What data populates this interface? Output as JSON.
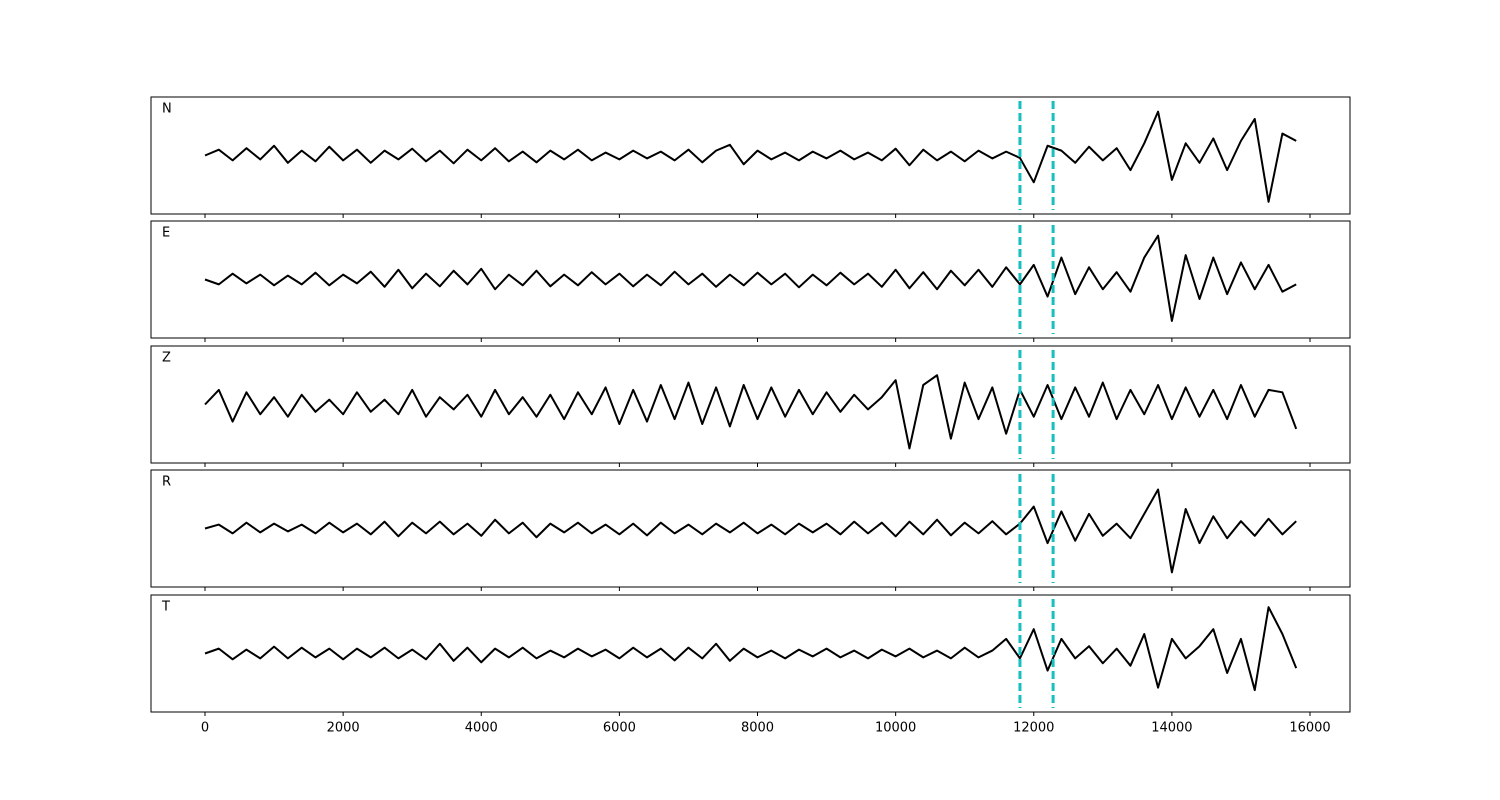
{
  "chart_data": {
    "type": "line",
    "layout": "stacked",
    "x": [
      0,
      200,
      400,
      600,
      800,
      1000,
      1200,
      1400,
      1600,
      1800,
      2000,
      2200,
      2400,
      2600,
      2800,
      3000,
      3200,
      3400,
      3600,
      3800,
      4000,
      4200,
      4400,
      4600,
      4800,
      5000,
      5200,
      5400,
      5600,
      5800,
      6000,
      6200,
      6400,
      6600,
      6800,
      7000,
      7200,
      7400,
      7600,
      7800,
      8000,
      8200,
      8400,
      8600,
      8800,
      9000,
      9200,
      9400,
      9600,
      9800,
      10000,
      10200,
      10400,
      10600,
      10800,
      11000,
      11200,
      11400,
      11600,
      11800,
      12000,
      12200,
      12400,
      12600,
      12800,
      13000,
      13200,
      13400,
      13600,
      13800,
      14000,
      14200,
      14400,
      14600,
      14800,
      15000,
      15200,
      15400,
      15600,
      15800
    ],
    "series": [
      {
        "name": "N",
        "color": "#000000",
        "values": [
          0,
          0.12,
          -0.1,
          0.15,
          -0.08,
          0.2,
          -0.15,
          0.1,
          -0.12,
          0.18,
          -0.1,
          0.12,
          -0.15,
          0.1,
          -0.08,
          0.14,
          -0.12,
          0.1,
          -0.16,
          0.12,
          -0.1,
          0.15,
          -0.12,
          0.08,
          -0.14,
          0.1,
          -0.08,
          0.12,
          -0.1,
          0.06,
          -0.08,
          0.1,
          -0.06,
          0.08,
          -0.1,
          0.12,
          -0.14,
          0.1,
          0.22,
          -0.18,
          0.1,
          -0.08,
          0.06,
          -0.1,
          0.08,
          -0.06,
          0.1,
          -0.08,
          0.06,
          -0.1,
          0.14,
          -0.2,
          0.12,
          -0.1,
          0.08,
          -0.12,
          0.1,
          -0.06,
          0.08,
          -0.05,
          -0.55,
          0.2,
          0.1,
          -0.15,
          0.18,
          -0.1,
          0.15,
          -0.3,
          0.25,
          0.9,
          -0.5,
          0.25,
          -0.15,
          0.35,
          -0.3,
          0.3,
          0.75,
          -0.95,
          0.45,
          0.3
        ]
      },
      {
        "name": "E",
        "color": "#000000",
        "values": [
          0,
          -0.1,
          0.12,
          -0.08,
          0.1,
          -0.12,
          0.08,
          -0.1,
          0.14,
          -0.12,
          0.1,
          -0.08,
          0.16,
          -0.15,
          0.2,
          -0.18,
          0.12,
          -0.14,
          0.18,
          -0.1,
          0.22,
          -0.2,
          0.1,
          -0.12,
          0.18,
          -0.14,
          0.1,
          -0.12,
          0.15,
          -0.1,
          0.12,
          -0.14,
          0.1,
          -0.12,
          0.16,
          -0.1,
          0.12,
          -0.15,
          0.1,
          -0.12,
          0.14,
          -0.1,
          0.12,
          -0.16,
          0.1,
          -0.12,
          0.14,
          -0.1,
          0.12,
          -0.15,
          0.2,
          -0.18,
          0.15,
          -0.2,
          0.18,
          -0.12,
          0.2,
          -0.15,
          0.25,
          -0.1,
          0.3,
          -0.35,
          0.45,
          -0.3,
          0.25,
          -0.2,
          0.15,
          -0.25,
          0.45,
          0.9,
          -0.85,
          0.5,
          -0.4,
          0.45,
          -0.3,
          0.35,
          -0.2,
          0.3,
          -0.25,
          -0.1
        ]
      },
      {
        "name": "Z",
        "color": "#000000",
        "values": [
          0,
          0.3,
          -0.35,
          0.25,
          -0.2,
          0.15,
          -0.25,
          0.2,
          -0.15,
          0.1,
          -0.2,
          0.25,
          -0.15,
          0.1,
          -0.2,
          0.3,
          -0.25,
          0.15,
          -0.1,
          0.2,
          -0.25,
          0.3,
          -0.2,
          0.15,
          -0.25,
          0.2,
          -0.3,
          0.25,
          -0.2,
          0.35,
          -0.4,
          0.3,
          -0.35,
          0.4,
          -0.3,
          0.45,
          -0.4,
          0.35,
          -0.45,
          0.4,
          -0.3,
          0.35,
          -0.25,
          0.3,
          -0.2,
          0.25,
          -0.15,
          0.2,
          -0.1,
          0.15,
          0.5,
          -0.9,
          0.4,
          0.6,
          -0.7,
          0.45,
          -0.3,
          0.35,
          -0.6,
          0.3,
          -0.25,
          0.4,
          -0.3,
          0.35,
          -0.25,
          0.45,
          -0.3,
          0.3,
          -0.2,
          0.4,
          -0.3,
          0.35,
          -0.25,
          0.3,
          -0.3,
          0.4,
          -0.25,
          0.3,
          0.25,
          -0.5
        ]
      },
      {
        "name": "R",
        "color": "#000000",
        "values": [
          0,
          0.08,
          -0.1,
          0.12,
          -0.08,
          0.1,
          -0.06,
          0.08,
          -0.1,
          0.12,
          -0.08,
          0.1,
          -0.12,
          0.14,
          -0.16,
          0.12,
          -0.1,
          0.14,
          -0.12,
          0.1,
          -0.15,
          0.18,
          -0.1,
          0.12,
          -0.18,
          0.1,
          -0.08,
          0.12,
          -0.1,
          0.08,
          -0.12,
          0.1,
          -0.14,
          0.12,
          -0.1,
          0.08,
          -0.12,
          0.1,
          -0.08,
          0.12,
          -0.1,
          0.08,
          -0.12,
          0.1,
          -0.08,
          0.1,
          -0.12,
          0.14,
          -0.1,
          0.12,
          -0.16,
          0.14,
          -0.12,
          0.18,
          -0.14,
          0.12,
          -0.1,
          0.15,
          -0.12,
          0.1,
          0.45,
          -0.3,
          0.35,
          -0.25,
          0.3,
          -0.15,
          0.1,
          -0.2,
          0.3,
          0.8,
          -0.9,
          0.4,
          -0.3,
          0.25,
          -0.2,
          0.15,
          -0.15,
          0.2,
          -0.12,
          0.15
        ]
      },
      {
        "name": "T",
        "color": "#000000",
        "values": [
          0,
          0.1,
          -0.12,
          0.08,
          -0.1,
          0.14,
          -0.1,
          0.12,
          -0.08,
          0.1,
          -0.12,
          0.1,
          -0.08,
          0.12,
          -0.1,
          0.08,
          -0.12,
          0.2,
          -0.15,
          0.12,
          -0.18,
          0.1,
          -0.08,
          0.12,
          -0.1,
          0.06,
          -0.08,
          0.1,
          -0.06,
          0.08,
          -0.1,
          0.12,
          -0.08,
          0.1,
          -0.14,
          0.12,
          -0.1,
          0.2,
          -0.15,
          0.1,
          -0.08,
          0.06,
          -0.1,
          0.08,
          -0.06,
          0.1,
          -0.08,
          0.06,
          -0.1,
          0.08,
          -0.06,
          0.1,
          -0.08,
          0.06,
          -0.1,
          0.12,
          -0.08,
          0.06,
          0.3,
          -0.1,
          0.5,
          -0.35,
          0.3,
          -0.1,
          0.15,
          -0.2,
          0.1,
          -0.25,
          0.4,
          -0.7,
          0.3,
          -0.1,
          0.15,
          0.5,
          -0.4,
          0.3,
          -0.75,
          0.95,
          0.4,
          -0.3
        ]
      }
    ],
    "vlines": [
      11800,
      12280
    ],
    "vline_color": "#17bfbf",
    "xlim": [
      -782,
      16579
    ],
    "xticks": [
      0,
      2000,
      4000,
      6000,
      8000,
      10000,
      12000,
      14000,
      16000
    ],
    "ylim": [
      -1.2,
      1.2
    ]
  }
}
